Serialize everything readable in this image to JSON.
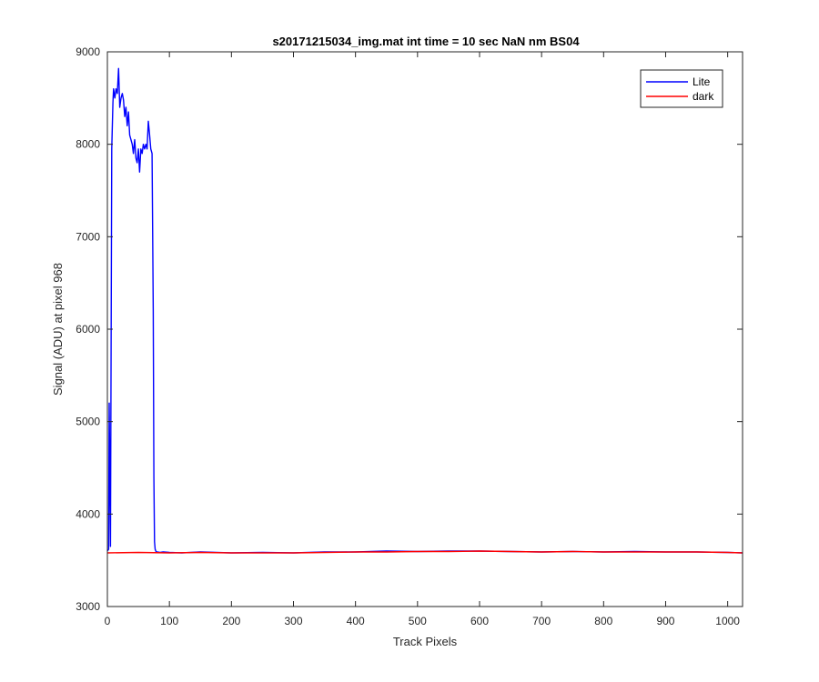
{
  "chart_data": {
    "type": "line",
    "title": "s20171215034_img.mat int time = 10 sec  NaN nm BS04",
    "xlabel": "Track Pixels",
    "ylabel": "Signal (ADU) at pixel 968",
    "xlim": [
      0,
      1024
    ],
    "ylim": [
      3000,
      9000
    ],
    "xticks": [
      0,
      100,
      200,
      300,
      400,
      500,
      600,
      700,
      800,
      900,
      1000
    ],
    "yticks": [
      3000,
      4000,
      5000,
      6000,
      7000,
      8000,
      9000
    ],
    "xtick_labels": [
      "0",
      "100",
      "200",
      "300",
      "400",
      "500",
      "600",
      "700",
      "800",
      "900",
      "1000"
    ],
    "ytick_labels": [
      "3000",
      "4000",
      "5000",
      "6000",
      "7000",
      "8000",
      "9000"
    ],
    "grid": false,
    "legend_position": "top-right",
    "series": [
      {
        "name": "Lite",
        "color": "#0000ff",
        "x": [
          0,
          2,
          3,
          5,
          7,
          9,
          10,
          12,
          14,
          16,
          18,
          20,
          22,
          24,
          26,
          28,
          30,
          32,
          34,
          36,
          38,
          40,
          42,
          44,
          46,
          48,
          50,
          52,
          54,
          56,
          58,
          60,
          62,
          64,
          66,
          68,
          70,
          72,
          74,
          75,
          76,
          77,
          78,
          79,
          80,
          85,
          90,
          100,
          120,
          150,
          200,
          250,
          300,
          350,
          400,
          450,
          500,
          550,
          600,
          650,
          700,
          750,
          800,
          850,
          900,
          950,
          1000,
          1024
        ],
        "y": [
          3600,
          3620,
          5200,
          3650,
          7950,
          8450,
          8600,
          8500,
          8600,
          8550,
          8820,
          8400,
          8500,
          8550,
          8480,
          8300,
          8400,
          8200,
          8350,
          8100,
          8050,
          8000,
          7900,
          8050,
          7850,
          7800,
          7950,
          7700,
          7950,
          7900,
          8000,
          7950,
          8000,
          7950,
          8250,
          8100,
          7950,
          7900,
          6200,
          4400,
          3700,
          3620,
          3600,
          3590,
          3590,
          3585,
          3590,
          3585,
          3580,
          3590,
          3580,
          3585,
          3580,
          3590,
          3590,
          3600,
          3595,
          3600,
          3600,
          3595,
          3590,
          3595,
          3590,
          3595,
          3590,
          3590,
          3585,
          3580
        ]
      },
      {
        "name": "dark",
        "color": "#ff0000",
        "x": [
          0,
          50,
          100,
          150,
          200,
          250,
          300,
          350,
          400,
          450,
          500,
          550,
          600,
          650,
          700,
          750,
          800,
          850,
          900,
          950,
          1000,
          1024
        ],
        "y": [
          3580,
          3585,
          3580,
          3585,
          3580,
          3580,
          3580,
          3585,
          3590,
          3590,
          3595,
          3595,
          3600,
          3595,
          3590,
          3595,
          3590,
          3590,
          3590,
          3590,
          3585,
          3580
        ]
      }
    ]
  }
}
